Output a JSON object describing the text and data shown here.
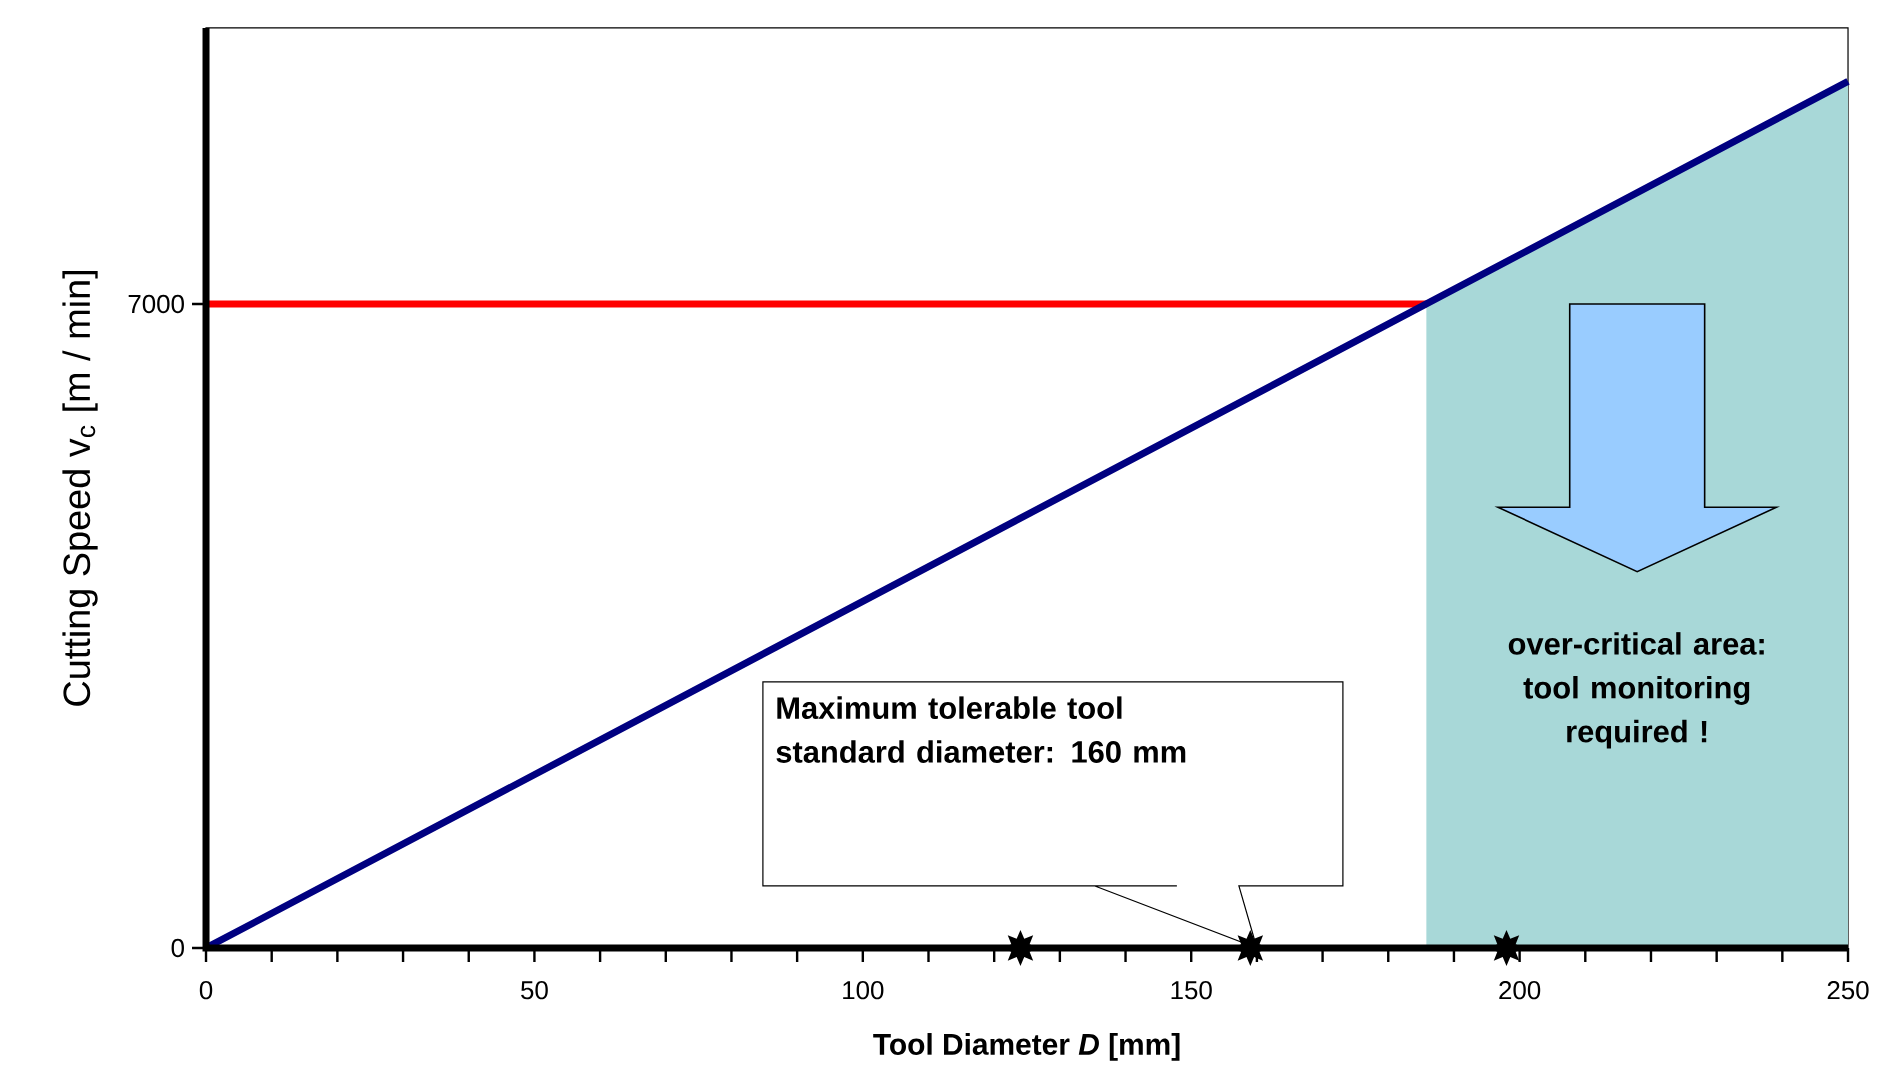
{
  "chart_data": {
    "type": "line",
    "xlabel": "Tool Diameter *D*  [mm]",
    "ylabel": "Cutting Speed v$_{c}$ [m / min]",
    "xlim": [
      0,
      250
    ],
    "ylim": [
      0,
      10000
    ],
    "xticks": [
      0,
      {
        "value": 10,
        "label": null
      },
      {
        "value": 20,
        "label": null
      },
      {
        "value": 30,
        "label": null
      },
      {
        "value": 40,
        "label": null
      },
      50,
      {
        "value": 60,
        "label": null
      },
      {
        "value": 70,
        "label": null
      },
      {
        "value": 80,
        "label": null
      },
      {
        "value": 90,
        "label": null
      },
      100,
      {
        "value": 110,
        "label": null
      },
      {
        "value": 120,
        "label": null
      },
      {
        "value": 130,
        "label": null
      },
      {
        "value": 140,
        "label": null
      },
      150,
      {
        "value": 160,
        "label": null
      },
      {
        "value": 170,
        "label": null
      },
      {
        "value": 180,
        "label": null
      },
      {
        "value": 190,
        "label": null
      },
      200,
      {
        "value": 210,
        "label": null
      },
      {
        "value": 220,
        "label": null
      },
      {
        "value": 230,
        "label": null
      },
      {
        "value": 240,
        "label": null
      },
      250
    ],
    "yticks": [
      0,
      7000
    ],
    "grid": false,
    "series": [
      {
        "color": "#ff0000",
        "x": [
          0,
          185.8
        ],
        "values": [
          7000,
          7000
        ]
      },
      {
        "color": "#000080",
        "x": [
          0,
          185.8,
          250
        ],
        "values": [
          0,
          7000,
          9420
        ]
      },
      {
        "type": "scatter",
        "color": "#000000",
        "marker": "star",
        "x": [
          124,
          159,
          198
        ],
        "values": [
          0,
          0,
          0
        ]
      }
    ],
    "bands": [
      {
        "axis": "x",
        "from": 185.8,
        "to": 250,
        "label": "over-critical area: tool monitoring required !",
        "color": "#a8d8d8"
      }
    ],
    "annotations": [
      "Maximum tolerable  tool standard diameter: 160 mm"
    ]
  }
}
